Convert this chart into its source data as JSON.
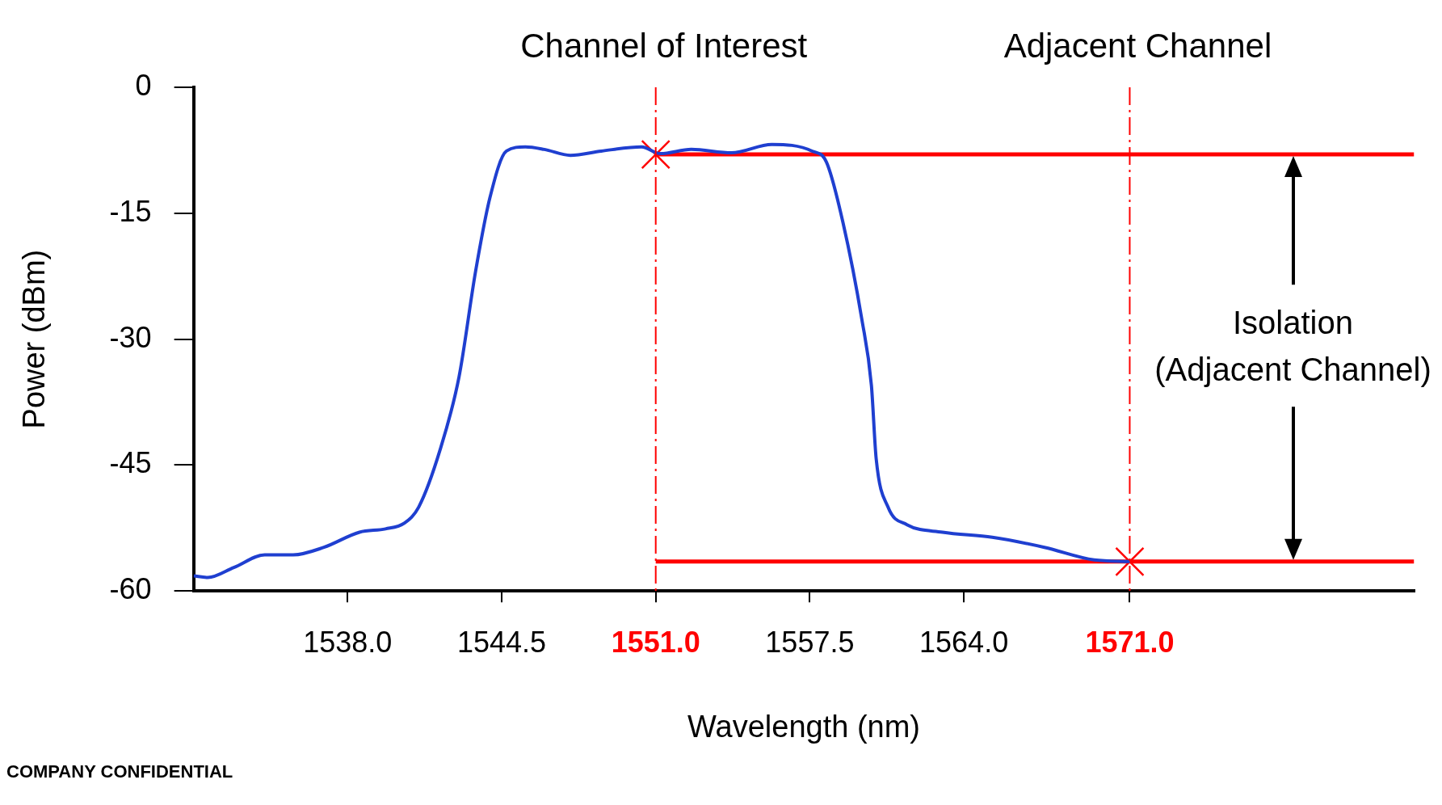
{
  "chart_data": {
    "type": "line",
    "xlabel": "Wavelength (nm)",
    "ylabel": "Power (dBm)",
    "xlim": [
      1531.5,
      1583
    ],
    "ylim": [
      -60,
      0
    ],
    "xticks": [
      {
        "value": 1538,
        "label": "1538.0"
      },
      {
        "value": 1544.5,
        "label": "1544.5"
      },
      {
        "value": 1551,
        "label": "1551.0"
      },
      {
        "value": 1557.5,
        "label": "1557.5"
      },
      {
        "value": 1564,
        "label": "1564.0"
      },
      {
        "value": 1571,
        "label": "1571.0"
      }
    ],
    "yticks": [
      0,
      -15,
      -30,
      -45,
      -60
    ],
    "grid": false,
    "legend": false,
    "line_style": "solid",
    "series": [
      {
        "color": "#1f3fd0",
        "x": [
          1531.5,
          1532.1,
          1533.2,
          1534.5,
          1535.7,
          1537.0,
          1538.5,
          1539.6,
          1540.4,
          1541.0,
          1541.9,
          1542.7,
          1543.4,
          1544.0,
          1544.7,
          1545.5,
          1546.3,
          1547.4,
          1548.7,
          1550.4,
          1551.2,
          1552.5,
          1554.2,
          1555.9,
          1557.6,
          1558.2,
          1558.9,
          1559.7,
          1560.1,
          1560.3,
          1560.8,
          1561.6,
          1563.1,
          1565.2,
          1567.4,
          1569.5,
          1571.0
        ],
        "values": [
          -58.2,
          -58.4,
          -57.2,
          -55.7,
          -55.7,
          -54.8,
          -53.0,
          -52.6,
          -51.9,
          -50.0,
          -43.2,
          -34.5,
          -21.9,
          -13.2,
          -7.6,
          -7.1,
          -7.4,
          -8.1,
          -7.6,
          -7.1,
          -7.9,
          -7.4,
          -7.8,
          -6.8,
          -7.6,
          -8.9,
          -16.1,
          -27.7,
          -35.5,
          -44.2,
          -50.0,
          -52.1,
          -53.0,
          -53.6,
          -54.8,
          -56.3,
          -56.5
        ]
      },
      {
        "type": "line",
        "color": "#ff0000",
        "x": [
          1551,
          1583
        ],
        "values": [
          -8,
          -8
        ]
      },
      {
        "type": "line",
        "color": "#ff0000",
        "x": [
          1551,
          1583
        ],
        "values": [
          -56.5,
          -56.5
        ]
      },
      {
        "type": "scatter",
        "marker": "cross",
        "color": "#ff0000",
        "x": [
          1551,
          1571
        ],
        "values": [
          -8,
          -56.5
        ]
      }
    ],
    "ref_lines": [
      {
        "axis": "x",
        "value": 1551,
        "label": "Channel of Interest",
        "color": "#ff0000",
        "line_style": "dashed"
      },
      {
        "axis": "x",
        "value": 1571,
        "label": "Adjacent Channel",
        "color": "#ff0000",
        "line_style": "dashed"
      }
    ],
    "annotations": [
      "Isolation\n(Adjacent Channel)",
      "COMPANY CONFIDENTIAL"
    ]
  }
}
